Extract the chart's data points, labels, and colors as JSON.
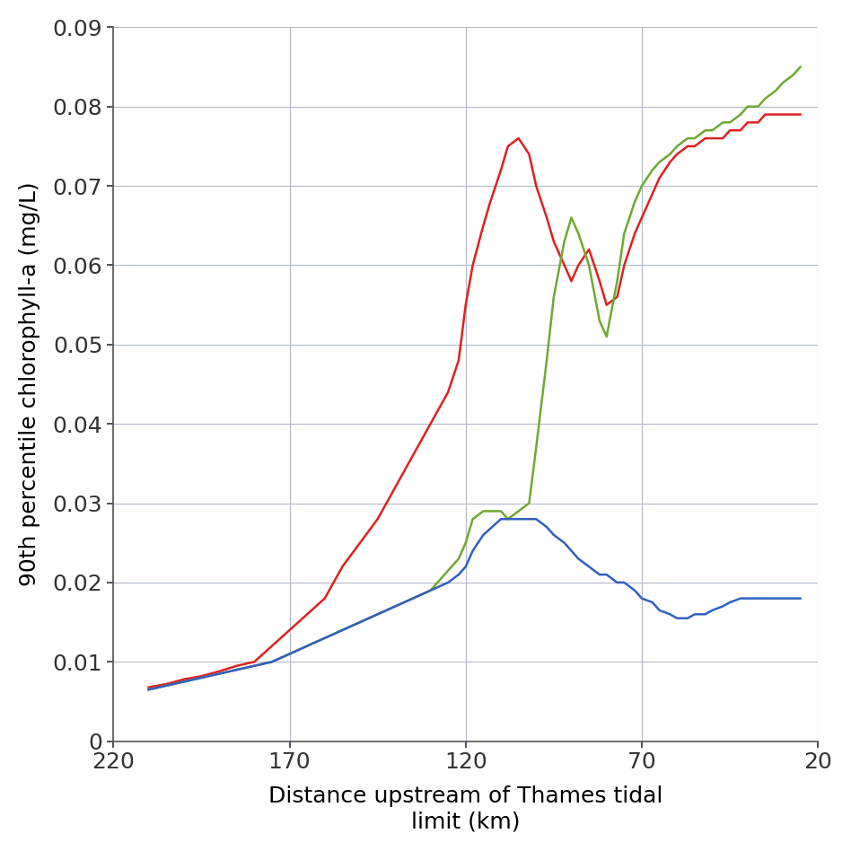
{
  "title": "",
  "xlabel": "Distance upstream of Thames tidal\nlimit (km)",
  "ylabel": "90th percentile chlorophyll-a (mg/L)",
  "x_ticks": [
    220,
    170,
    120,
    70,
    20
  ],
  "xlim": [
    220,
    20
  ],
  "ylim": [
    0,
    0.09
  ],
  "yticks": [
    0,
    0.01,
    0.02,
    0.03,
    0.04,
    0.05,
    0.06,
    0.07,
    0.08,
    0.09
  ],
  "background_color": "#ffffff",
  "grid_color": "#b0b8c8",
  "red_line": {
    "color": "#e02020",
    "x": [
      210,
      205,
      200,
      195,
      190,
      185,
      180,
      175,
      170,
      165,
      160,
      155,
      150,
      145,
      140,
      135,
      130,
      125,
      122,
      120,
      118,
      115,
      113,
      110,
      108,
      105,
      102,
      100,
      97,
      95,
      92,
      90,
      88,
      85,
      82,
      80,
      77,
      75,
      72,
      70,
      67,
      65,
      62,
      60,
      57,
      55,
      52,
      50,
      47,
      45,
      42,
      40,
      37,
      35,
      32,
      30,
      27,
      25
    ],
    "y": [
      0.0068,
      0.0072,
      0.0078,
      0.0082,
      0.0088,
      0.0095,
      0.01,
      0.012,
      0.014,
      0.016,
      0.018,
      0.022,
      0.025,
      0.028,
      0.032,
      0.036,
      0.04,
      0.044,
      0.048,
      0.055,
      0.06,
      0.065,
      0.068,
      0.072,
      0.075,
      0.076,
      0.074,
      0.07,
      0.066,
      0.063,
      0.06,
      0.058,
      0.06,
      0.062,
      0.058,
      0.055,
      0.056,
      0.06,
      0.064,
      0.066,
      0.069,
      0.071,
      0.073,
      0.074,
      0.075,
      0.075,
      0.076,
      0.076,
      0.076,
      0.077,
      0.077,
      0.078,
      0.078,
      0.079,
      0.079,
      0.079,
      0.079,
      0.079
    ]
  },
  "green_line": {
    "color": "#70a830",
    "x": [
      210,
      205,
      200,
      195,
      190,
      185,
      180,
      175,
      170,
      165,
      160,
      155,
      150,
      145,
      140,
      135,
      130,
      128,
      126,
      124,
      122,
      120,
      118,
      115,
      113,
      110,
      108,
      105,
      102,
      100,
      97,
      95,
      92,
      90,
      88,
      85,
      82,
      80,
      77,
      75,
      72,
      70,
      67,
      65,
      62,
      60,
      57,
      55,
      52,
      50,
      47,
      45,
      42,
      40,
      37,
      35,
      32,
      30,
      27,
      25
    ],
    "y": [
      0.0065,
      0.007,
      0.0075,
      0.008,
      0.0085,
      0.009,
      0.0095,
      0.01,
      0.011,
      0.012,
      0.013,
      0.014,
      0.015,
      0.016,
      0.017,
      0.018,
      0.019,
      0.02,
      0.021,
      0.022,
      0.023,
      0.025,
      0.028,
      0.029,
      0.029,
      0.029,
      0.028,
      0.029,
      0.03,
      0.037,
      0.048,
      0.056,
      0.063,
      0.066,
      0.064,
      0.06,
      0.053,
      0.051,
      0.058,
      0.064,
      0.068,
      0.07,
      0.072,
      0.073,
      0.074,
      0.075,
      0.076,
      0.076,
      0.077,
      0.077,
      0.078,
      0.078,
      0.079,
      0.08,
      0.08,
      0.081,
      0.082,
      0.083,
      0.084,
      0.085
    ]
  },
  "blue_line": {
    "color": "#3060c0",
    "x": [
      210,
      205,
      200,
      195,
      190,
      185,
      180,
      175,
      170,
      165,
      160,
      155,
      150,
      145,
      140,
      135,
      130,
      125,
      122,
      120,
      118,
      115,
      110,
      105,
      102,
      100,
      97,
      95,
      92,
      90,
      88,
      85,
      82,
      80,
      77,
      75,
      72,
      70,
      67,
      65,
      62,
      60,
      57,
      55,
      52,
      50,
      47,
      45,
      42,
      40,
      37,
      35,
      32,
      30,
      27,
      25
    ],
    "y": [
      0.0065,
      0.007,
      0.0075,
      0.008,
      0.0085,
      0.009,
      0.0095,
      0.01,
      0.011,
      0.012,
      0.013,
      0.014,
      0.015,
      0.016,
      0.017,
      0.018,
      0.019,
      0.02,
      0.021,
      0.022,
      0.024,
      0.026,
      0.028,
      0.028,
      0.028,
      0.028,
      0.027,
      0.026,
      0.025,
      0.024,
      0.023,
      0.022,
      0.021,
      0.021,
      0.02,
      0.02,
      0.019,
      0.018,
      0.0175,
      0.0165,
      0.016,
      0.0155,
      0.0155,
      0.016,
      0.016,
      0.0165,
      0.017,
      0.0175,
      0.018,
      0.018,
      0.018,
      0.018,
      0.018,
      0.018,
      0.018,
      0.018
    ]
  }
}
